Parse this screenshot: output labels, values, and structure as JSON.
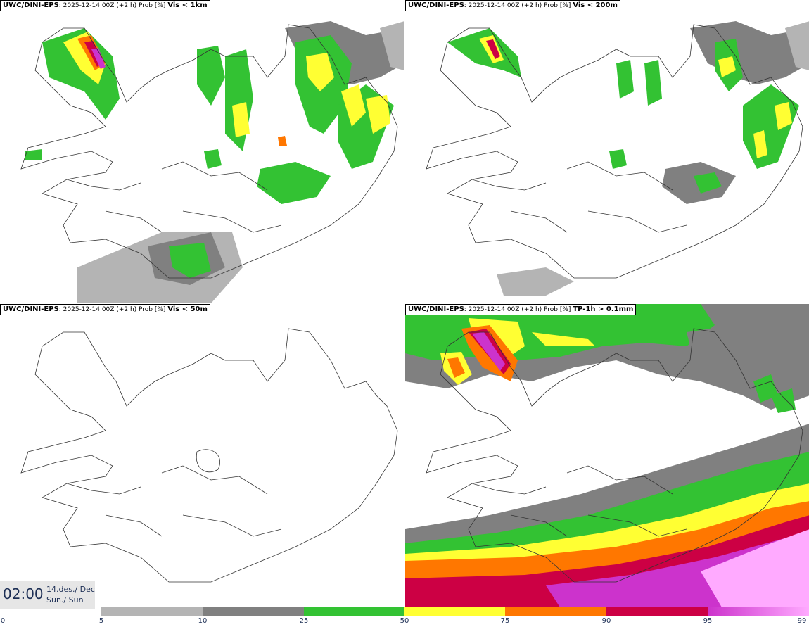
{
  "panels": [
    {
      "model": "UWC/DINI-EPS",
      "meta": ": 2025-12-14 00Z (+2 h) Prob [%] ",
      "variable": "Vis < 1km"
    },
    {
      "model": "UWC/DINI-EPS",
      "meta": ": 2025-12-14 00Z (+2 h) Prob [%] ",
      "variable": "Vis < 200m"
    },
    {
      "model": "UWC/DINI-EPS",
      "meta": ": 2025-12-14 00Z (+2 h) Prob [%] ",
      "variable": "Vis < 50m"
    },
    {
      "model": "UWC/DINI-EPS",
      "meta": ": 2025-12-14 00Z (+2 h) Prob [%] ",
      "variable": "TP-1h > 0.1mm"
    }
  ],
  "valid_time": {
    "time": "02:00",
    "date": "14.des./ Dec",
    "day": "Sun./ Sun"
  },
  "colorbar": {
    "ticks": [
      "0",
      "5",
      "10",
      "25",
      "50",
      "75",
      "90",
      "95",
      "99"
    ],
    "colors": {
      "5-10": "#b4b4b4",
      "10-25": "#808080",
      "25-50": "#33c233",
      "50-75": "#ffff33",
      "75-90": "#ff7700",
      "90-95": "#cc0044",
      "95-99": "#cc33cc",
      "99+": "#ffaaff"
    }
  }
}
